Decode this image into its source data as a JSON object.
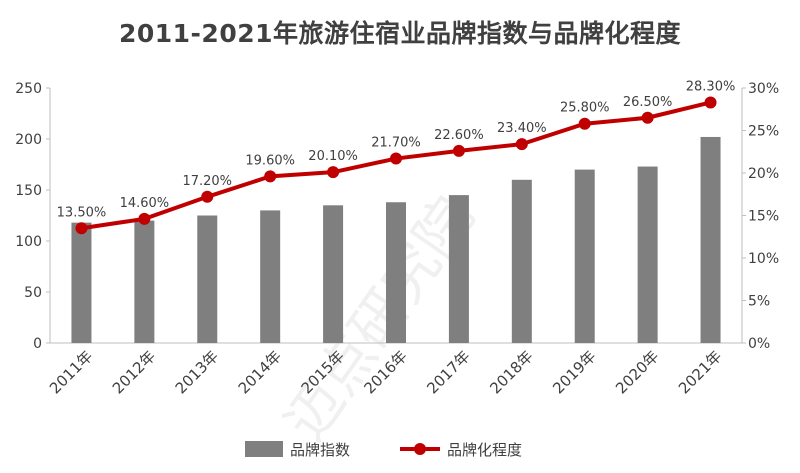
{
  "chart_data": {
    "type": "bar",
    "title": "2011-2021年旅游住宿业品牌指数与品牌化程度",
    "categories": [
      "2011年",
      "2012年",
      "2013年",
      "2014年",
      "2015年",
      "2016年",
      "2017年",
      "2018年",
      "2019年",
      "2020年",
      "2021年"
    ],
    "series": [
      {
        "name": "品牌指数",
        "type": "bar",
        "axis": "left",
        "color": "#7f7f7f",
        "values": [
          118,
          120,
          125,
          130,
          135,
          138,
          145,
          160,
          170,
          173,
          202
        ]
      },
      {
        "name": "品牌化程度",
        "type": "line",
        "axis": "right",
        "color": "#c00000",
        "values": [
          13.5,
          14.6,
          17.2,
          19.6,
          20.1,
          21.7,
          22.6,
          23.4,
          25.8,
          26.5,
          28.3
        ],
        "labels": [
          "13.50%",
          "14.60%",
          "17.20%",
          "19.60%",
          "20.10%",
          "21.70%",
          "22.60%",
          "23.40%",
          "25.80%",
          "26.50%",
          "28.30%"
        ]
      }
    ],
    "y_left": {
      "min": 0,
      "max": 250,
      "ticks": [
        "0",
        "50",
        "100",
        "150",
        "200",
        "250"
      ]
    },
    "y_right": {
      "min": 0,
      "max": 30,
      "ticks": [
        "0%",
        "5%",
        "10%",
        "15%",
        "20%",
        "25%",
        "30%"
      ]
    },
    "legend": {
      "position": "bottom",
      "items": [
        "品牌指数",
        "品牌化程度"
      ]
    },
    "watermark": "迈点研究院"
  }
}
